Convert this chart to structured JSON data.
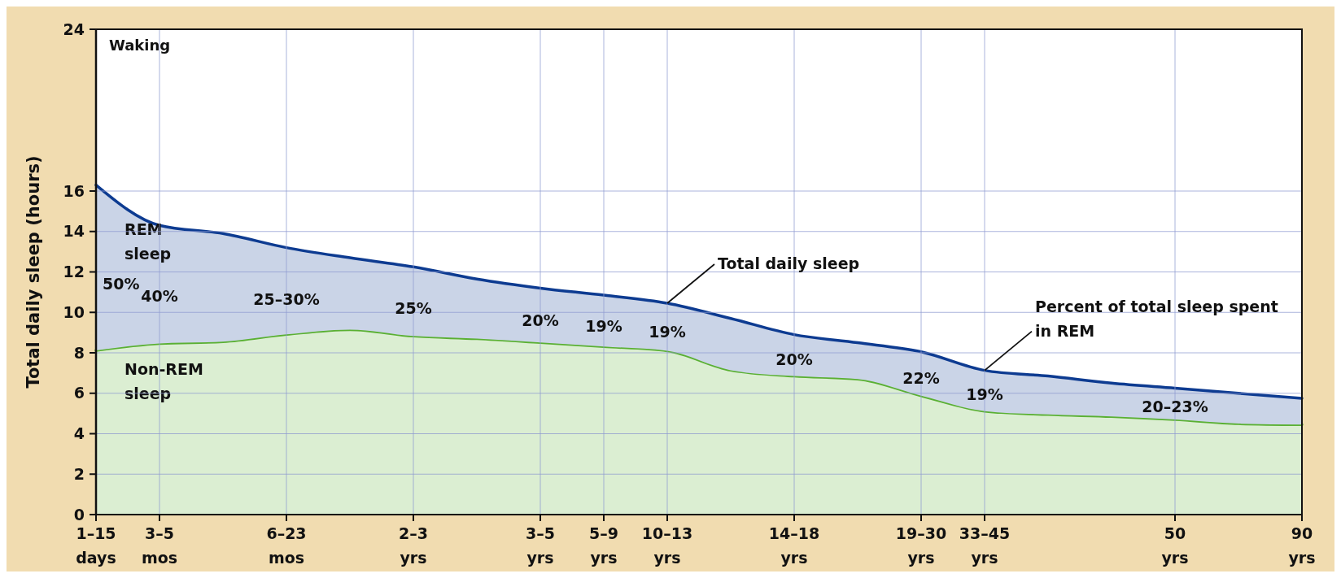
{
  "chart_data": {
    "type": "area",
    "stacked": true,
    "ylabel": "Total daily sleep (hours)",
    "categories": [
      "1–15 days",
      "3–5 mos",
      null,
      "6–23 mos",
      null,
      "2–3 yrs",
      null,
      "3–5 yrs",
      "5–9 yrs",
      "10–13 yrs",
      null,
      "14–18 yrs",
      null,
      "19–30 yrs",
      "33–45 yrs",
      null,
      null,
      "50 yrs",
      null,
      "90 yrs"
    ],
    "ylim": [
      0,
      24
    ],
    "yticks": [
      0,
      2,
      4,
      6,
      8,
      10,
      12,
      14,
      16,
      24
    ],
    "grid": true,
    "series": [
      {
        "name": "Non-REM sleep",
        "color": "#5ab033",
        "values": [
          8.12,
          8.46,
          8.55,
          8.91,
          9.15,
          8.83,
          8.7,
          8.51,
          8.31,
          8.1,
          7.14,
          6.85,
          6.7,
          5.88,
          5.12,
          4.95,
          4.85,
          4.7,
          4.5,
          4.45
        ]
      },
      {
        "name": "REM sleep",
        "color": "#0d3b91",
        "values": [
          8.18,
          5.84,
          5.35,
          4.29,
          3.55,
          3.42,
          2.95,
          2.69,
          2.54,
          2.35,
          2.56,
          2.05,
          1.8,
          2.17,
          2.01,
          1.9,
          1.65,
          1.55,
          1.5,
          1.3
        ]
      }
    ],
    "annotations": [
      "Waking",
      "50%",
      "40%",
      "25–30%",
      "25%",
      "20%",
      "19%",
      "19%",
      "20%",
      "22%",
      "19%",
      "20–23%",
      {
        "text": "Total daily sleep",
        "x": "10–13 yrs",
        "y": 10.45
      },
      {
        "text": "Percent of total sleep spent in REM",
        "x": "33–45 yrs",
        "y": 7.13
      }
    ]
  }
}
